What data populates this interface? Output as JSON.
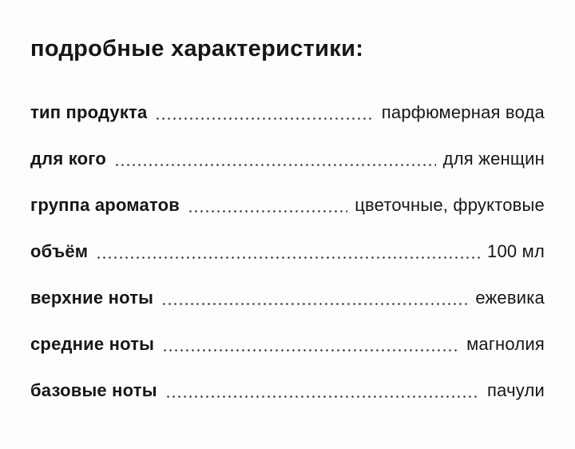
{
  "page": {
    "title": "подробные характеристики:"
  },
  "characteristics": [
    {
      "label": "тип продукта",
      "value": "парфюмерная вода"
    },
    {
      "label": "для кого",
      "value": "для женщин"
    },
    {
      "label": "группа ароматов",
      "value": "цветочные, фруктовые"
    },
    {
      "label": "объём",
      "value": "100 мл"
    },
    {
      "label": "верхние ноты",
      "value": "ежевика"
    },
    {
      "label": "средние ноты",
      "value": "магнолия"
    },
    {
      "label": "базовые ноты",
      "value": "пачули"
    }
  ],
  "colors": {
    "text": "#161616",
    "background": "#fdfdfd",
    "dot_leader": "#3c3c3c"
  }
}
